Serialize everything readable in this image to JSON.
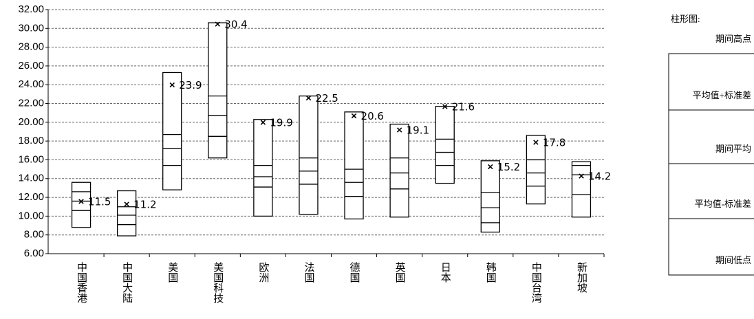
{
  "chart_data": {
    "type": "range-box",
    "categories": [
      "中国香港",
      "中国大陆",
      "美国",
      "美国科技",
      "欧洲",
      "法国",
      "德国",
      "英国",
      "日本",
      "韩国",
      "中国台湾",
      "新加坡"
    ],
    "series": [
      {
        "name": "期间高点",
        "values": [
          13.6,
          12.7,
          25.3,
          30.6,
          20.3,
          22.8,
          21.1,
          19.8,
          21.7,
          15.9,
          18.6,
          15.8
        ]
      },
      {
        "name": "平均值+标准差",
        "values": [
          12.6,
          11.0,
          18.7,
          22.8,
          15.4,
          16.2,
          15.0,
          16.2,
          18.2,
          12.5,
          16.0,
          15.4
        ]
      },
      {
        "name": "期间平均",
        "values": [
          11.6,
          10.1,
          17.2,
          20.7,
          14.2,
          14.8,
          13.6,
          14.6,
          16.8,
          10.9,
          14.6,
          14.4
        ]
      },
      {
        "name": "平均值-标准差",
        "values": [
          10.6,
          9.1,
          15.4,
          18.5,
          13.1,
          13.4,
          12.1,
          12.9,
          15.4,
          9.3,
          13.2,
          12.3
        ]
      },
      {
        "name": "期间低点",
        "values": [
          8.8,
          7.9,
          12.8,
          16.2,
          10.0,
          10.2,
          9.7,
          9.9,
          13.5,
          8.3,
          11.3,
          9.9
        ]
      }
    ],
    "markers": [
      11.5,
      11.2,
      23.9,
      30.4,
      19.9,
      22.5,
      20.6,
      19.1,
      21.6,
      15.2,
      17.8,
      14.2
    ],
    "marker_symbol": "×",
    "legend_title": "柱形图:",
    "ylim": [
      6,
      32
    ],
    "yticks": [
      {
        "value": 6,
        "label": "6.00"
      },
      {
        "value": 8,
        "label": "8.00"
      },
      {
        "value": 10,
        "label": "10.00"
      },
      {
        "value": 12,
        "label": "12.00"
      },
      {
        "value": 14,
        "label": "14.00"
      },
      {
        "value": 16,
        "label": "16.00"
      },
      {
        "value": 18,
        "label": "18.00"
      },
      {
        "value": 20,
        "label": "20.00"
      },
      {
        "value": 22,
        "label": "22.00"
      },
      {
        "value": 24,
        "label": "24.00"
      },
      {
        "value": 26,
        "label": "26.00"
      },
      {
        "value": 28,
        "label": "28.00"
      },
      {
        "value": 30,
        "label": "30.00"
      },
      {
        "value": 32,
        "label": "32.00"
      }
    ],
    "grid": true,
    "color": "#000000"
  }
}
